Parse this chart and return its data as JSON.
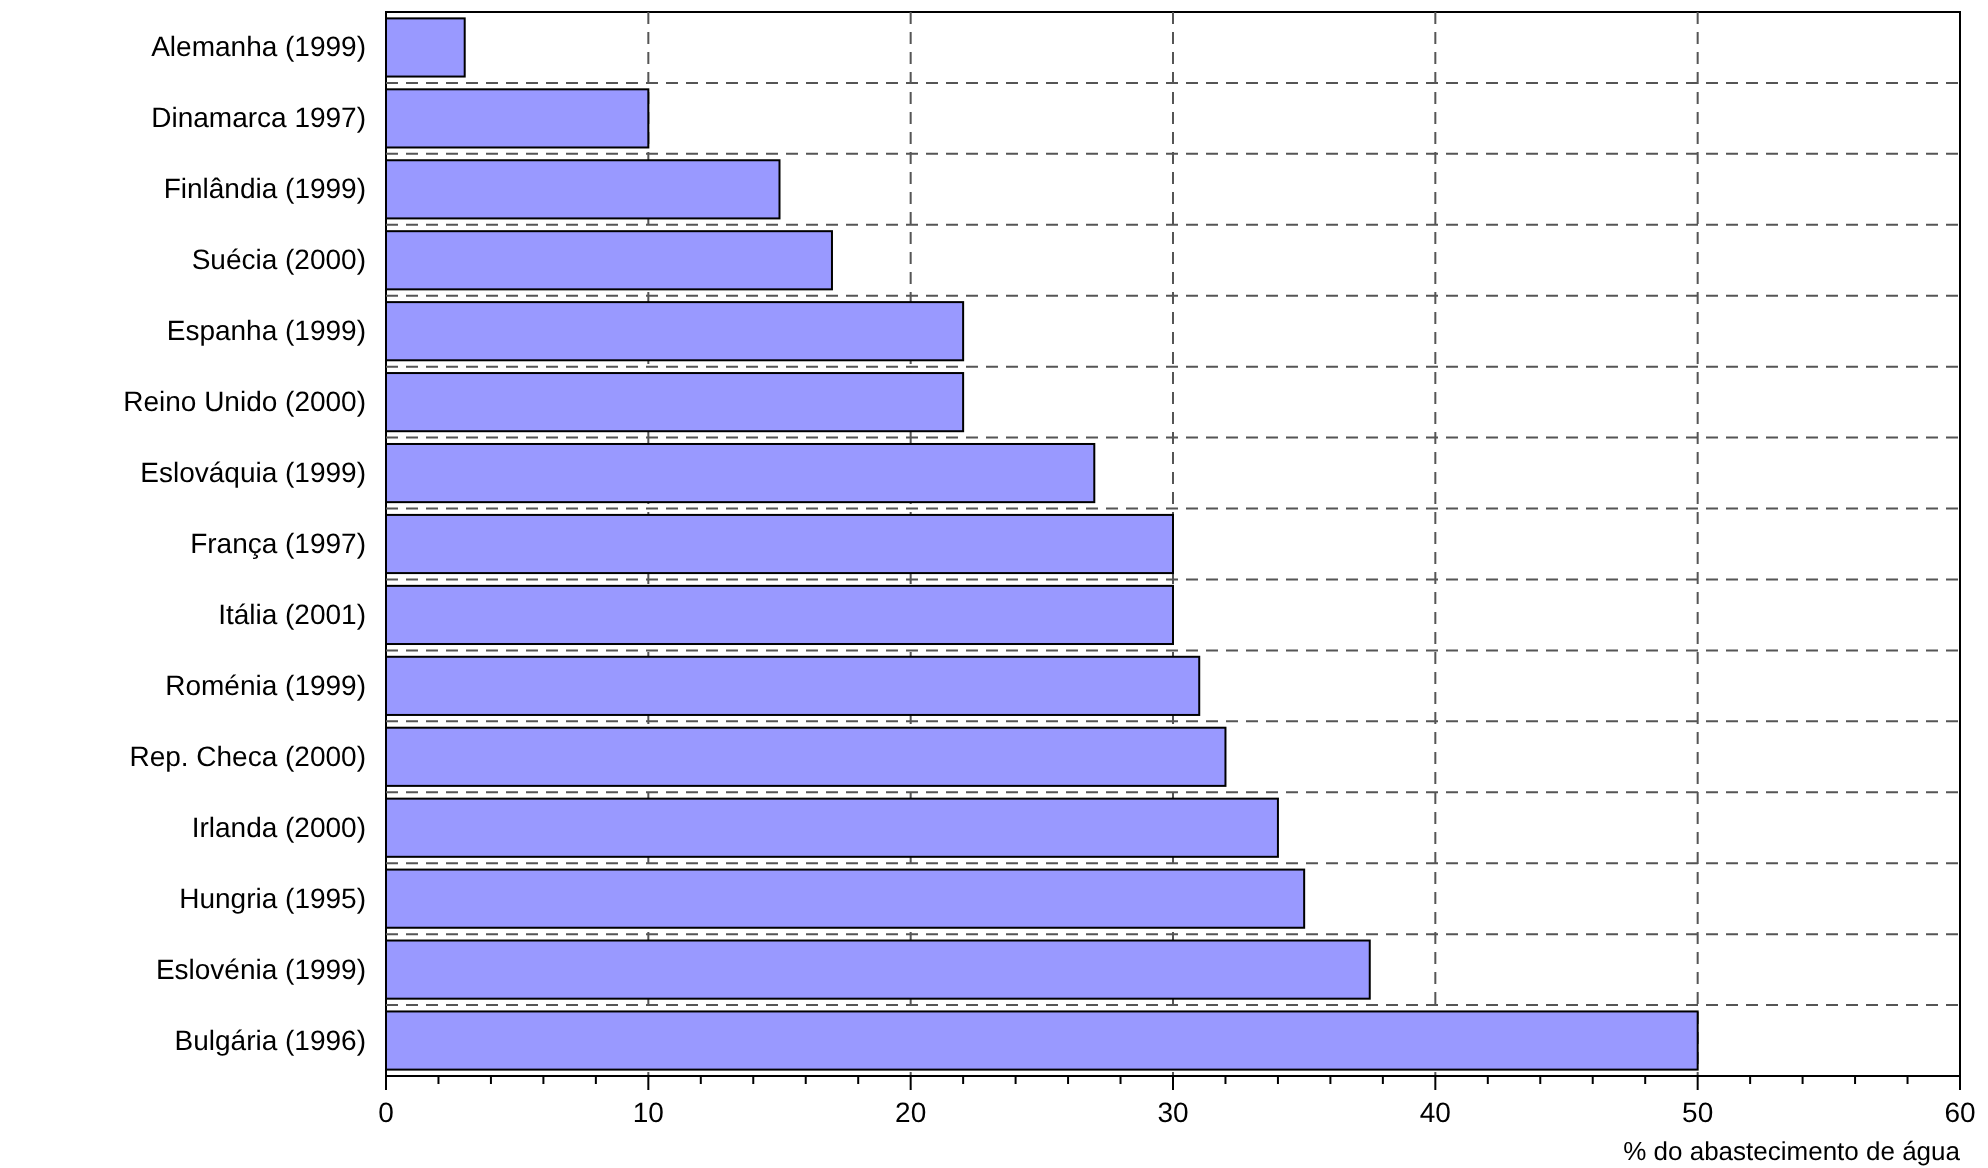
{
  "chart_data": {
    "type": "bar",
    "orientation": "horizontal",
    "xlabel": "% do abastecimento de água",
    "categories": [
      "Alemanha (1999)",
      "Dinamarca 1997)",
      "Finlândia (1999)",
      "Suécia (2000)",
      "Espanha (1999)",
      "Reino Unido (2000)",
      "Eslováquia (1999)",
      "França (1997)",
      "Itália (2001)",
      "Roménia (1999)",
      "Rep. Checa (2000)",
      "Irlanda (2000)",
      "Hungria (1995)",
      "Eslovénia (1999)",
      "Bulgária (1996)"
    ],
    "values": [
      3,
      10,
      15,
      17,
      22,
      22,
      27,
      30,
      30,
      31,
      32,
      34,
      35,
      37.5,
      50
    ],
    "color": "#9999ff",
    "xlim": [
      0,
      60
    ],
    "xticks": [
      0,
      {
        "value": 2,
        "label": null
      },
      {
        "value": 4,
        "label": null
      },
      {
        "value": 6,
        "label": null
      },
      {
        "value": 8,
        "label": null
      },
      10,
      {
        "value": 12,
        "label": null
      },
      {
        "value": 14,
        "label": null
      },
      {
        "value": 16,
        "label": null
      },
      {
        "value": 18,
        "label": null
      },
      20,
      {
        "value": 22,
        "label": null
      },
      {
        "value": 24,
        "label": null
      },
      {
        "value": 26,
        "label": null
      },
      {
        "value": 28,
        "label": null
      },
      30,
      {
        "value": 32,
        "label": null
      },
      {
        "value": 34,
        "label": null
      },
      {
        "value": 36,
        "label": null
      },
      {
        "value": 38,
        "label": null
      },
      40,
      {
        "value": 42,
        "label": null
      },
      {
        "value": 44,
        "label": null
      },
      {
        "value": 46,
        "label": null
      },
      {
        "value": 48,
        "label": null
      },
      50,
      {
        "value": 52,
        "label": null
      },
      {
        "value": 54,
        "label": null
      },
      {
        "value": 56,
        "label": null
      },
      {
        "value": 58,
        "label": null
      },
      60
    ],
    "grid": true
  }
}
